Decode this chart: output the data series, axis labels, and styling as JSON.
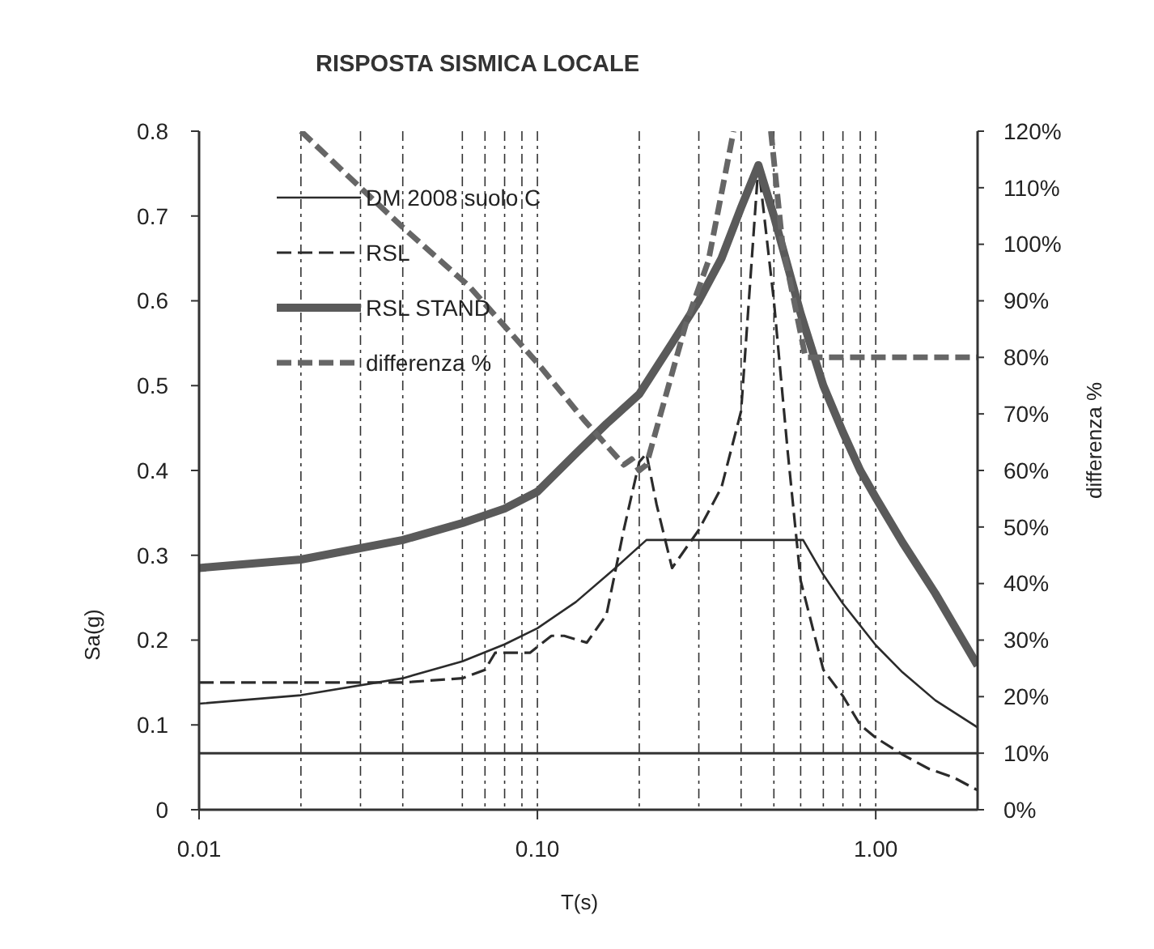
{
  "chart_data": {
    "type": "line",
    "title": "RISPOSTA SISMICA LOCALE",
    "xlabel": "T(s)",
    "ylabel": "Sa(g)",
    "y2label": "differenza %",
    "log": "x",
    "xlim": [
      0.01,
      2
    ],
    "xticks": [
      {
        "value": 0.01,
        "label": "0.01"
      },
      {
        "value": 0.02,
        "label": null
      },
      {
        "value": 0.03,
        "label": null
      },
      {
        "value": 0.04,
        "label": null
      },
      {
        "value": 0.06,
        "label": null
      },
      {
        "value": 0.07,
        "label": null
      },
      {
        "value": 0.08,
        "label": null
      },
      {
        "value": 0.09,
        "label": null
      },
      {
        "value": 0.1,
        "label": "0.10"
      },
      {
        "value": 0.2,
        "label": null
      },
      {
        "value": 0.3,
        "label": null
      },
      {
        "value": 0.4,
        "label": null
      },
      {
        "value": 0.5,
        "label": null
      },
      {
        "value": 0.6,
        "label": null
      },
      {
        "value": 0.7,
        "label": null
      },
      {
        "value": 0.8,
        "label": null
      },
      {
        "value": 0.9,
        "label": null
      },
      {
        "value": 1,
        "label": "1.00"
      }
    ],
    "ylim": [
      0,
      0.8
    ],
    "yticks": [
      0,
      0.1,
      0.2,
      0.3,
      0.4,
      0.5,
      0.6,
      0.7,
      0.8
    ],
    "y2lim": [
      0,
      120
    ],
    "y2ticks": [
      {
        "value": 0,
        "label": "0%"
      },
      {
        "value": 10,
        "label": "10%"
      },
      {
        "value": 20,
        "label": "20%"
      },
      {
        "value": 30,
        "label": "30%"
      },
      {
        "value": 40,
        "label": "40%"
      },
      {
        "value": 50,
        "label": "50%"
      },
      {
        "value": 60,
        "label": "60%"
      },
      {
        "value": 70,
        "label": "70%"
      },
      {
        "value": 80,
        "label": "80%"
      },
      {
        "value": 90,
        "label": "90%"
      },
      {
        "value": 100,
        "label": "100%"
      },
      {
        "value": 110,
        "label": "110%"
      },
      {
        "value": 120,
        "label": "120%"
      }
    ],
    "grid": "x",
    "legend": "top left",
    "ref_lines": [
      {
        "axis": "y2",
        "value": 10,
        "color": "#333333"
      }
    ],
    "series": [
      {
        "name": "DM 2008 suolo C",
        "color": "#2b2b2b",
        "line_style": "solid",
        "x": [
          0.01,
          0.02,
          0.04,
          0.06,
          0.08,
          0.1,
          0.13,
          0.17,
          0.21,
          0.61,
          0.7,
          0.8,
          1,
          1.2,
          1.5,
          2
        ],
        "values": [
          0.125,
          0.135,
          0.155,
          0.175,
          0.195,
          0.214,
          0.245,
          0.285,
          0.318,
          0.318,
          0.277,
          0.243,
          0.194,
          0.162,
          0.129,
          0.097
        ]
      },
      {
        "name": "RSL",
        "color": "#2b2b2b",
        "line_style": "dashed",
        "x": [
          0.01,
          0.02,
          0.04,
          0.06,
          0.07,
          0.075,
          0.095,
          0.11,
          0.12,
          0.14,
          0.16,
          0.18,
          0.2,
          0.21,
          0.225,
          0.25,
          0.3,
          0.35,
          0.4,
          0.45,
          0.5,
          0.55,
          0.6,
          0.7,
          0.8,
          0.9,
          1,
          1.2,
          1.44,
          1.7,
          2
        ],
        "values": [
          0.15,
          0.15,
          0.15,
          0.155,
          0.165,
          0.185,
          0.185,
          0.205,
          0.205,
          0.197,
          0.23,
          0.33,
          0.41,
          0.42,
          0.36,
          0.285,
          0.33,
          0.38,
          0.47,
          0.76,
          0.6,
          0.42,
          0.27,
          0.165,
          0.134,
          0.1,
          0.085,
          0.065,
          0.048,
          0.038,
          0.023
        ]
      },
      {
        "name": "RSL STAND",
        "color": "#5a5a5a",
        "line_style": "solid",
        "x": [
          0.01,
          0.02,
          0.04,
          0.06,
          0.08,
          0.1,
          0.13,
          0.16,
          0.2,
          0.25,
          0.3,
          0.35,
          0.4,
          0.45,
          0.5,
          0.55,
          0.6,
          0.7,
          0.8,
          0.9,
          1,
          1.2,
          1.5,
          2
        ],
        "values": [
          0.285,
          0.295,
          0.318,
          0.338,
          0.355,
          0.375,
          0.42,
          0.455,
          0.49,
          0.55,
          0.6,
          0.65,
          0.71,
          0.76,
          0.7,
          0.64,
          0.585,
          0.5,
          0.445,
          0.4,
          0.368,
          0.315,
          0.255,
          0.17
        ]
      },
      {
        "name": "differenza %",
        "color": "#666666",
        "line_style": "dashed",
        "axis": "y2",
        "x": [
          0.02,
          0.03,
          0.04,
          0.063,
          0.1,
          0.137,
          0.18,
          0.19,
          0.2,
          0.21,
          0.275,
          0.32,
          0.38,
          0.43,
          0.49,
          0.53,
          0.62,
          2
        ],
        "values": [
          120,
          110,
          103,
          92.5,
          79,
          69,
          61,
          62,
          60,
          61,
          86,
          97,
          120,
          null,
          120,
          100,
          80,
          80
        ]
      }
    ]
  }
}
